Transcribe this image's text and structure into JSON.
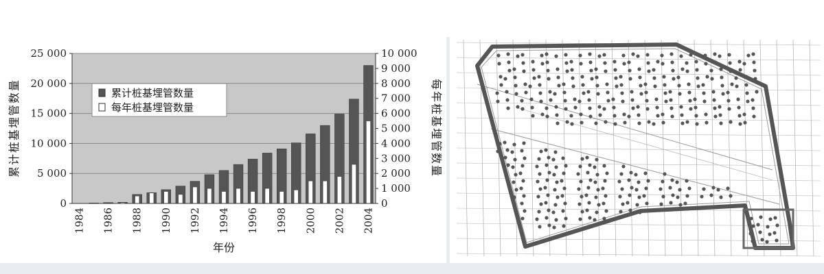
{
  "chart_data": {
    "type": "bar",
    "xlabel": "年份",
    "ylabel_left": "累计桩基埋管数量",
    "ylabel_right": "每年桩基埋管数量",
    "ylim_left": [
      0,
      25000
    ],
    "ylim_right": [
      0,
      10000
    ],
    "left_ticks": [
      "0",
      "5 000",
      "10 000",
      "15 000",
      "20 000",
      "25 000"
    ],
    "right_ticks": [
      "0",
      "1 000",
      "2 000",
      "3 000",
      "4 000",
      "5 000",
      "6 000",
      "7 000",
      "8 000",
      "9 000",
      "10 000"
    ],
    "x_tick_labels": [
      "1984",
      "1986",
      "1988",
      "1990",
      "1992",
      "1994",
      "1996",
      "1998",
      "2000",
      "2002",
      "2004"
    ],
    "legend_position": "top-left",
    "categories": [
      "1984",
      "1985",
      "1986",
      "1987",
      "1988",
      "1989",
      "1990",
      "1991",
      "1992",
      "1993",
      "1994",
      "1995",
      "1996",
      "1997",
      "1998",
      "1999",
      "2000",
      "2001",
      "2002",
      "2003",
      "2004"
    ],
    "series": [
      {
        "name": "累计桩基埋管数量",
        "axis": "left",
        "color": "#555555",
        "values": [
          30,
          80,
          150,
          200,
          1500,
          1800,
          2300,
          2900,
          3700,
          4800,
          5500,
          6500,
          7400,
          8400,
          9100,
          10100,
          11600,
          13000,
          14900,
          17400,
          23000
        ]
      },
      {
        "name": "每年桩基埋管数量",
        "axis": "right",
        "color": "#ffffff",
        "values": [
          0,
          20,
          30,
          60,
          500,
          700,
          800,
          600,
          1100,
          1000,
          800,
          1000,
          800,
          1000,
          800,
          900,
          1500,
          1500,
          1800,
          2600,
          5500
        ]
      }
    ]
  },
  "map": {
    "type": "site-plan",
    "border_color": "#555555"
  }
}
